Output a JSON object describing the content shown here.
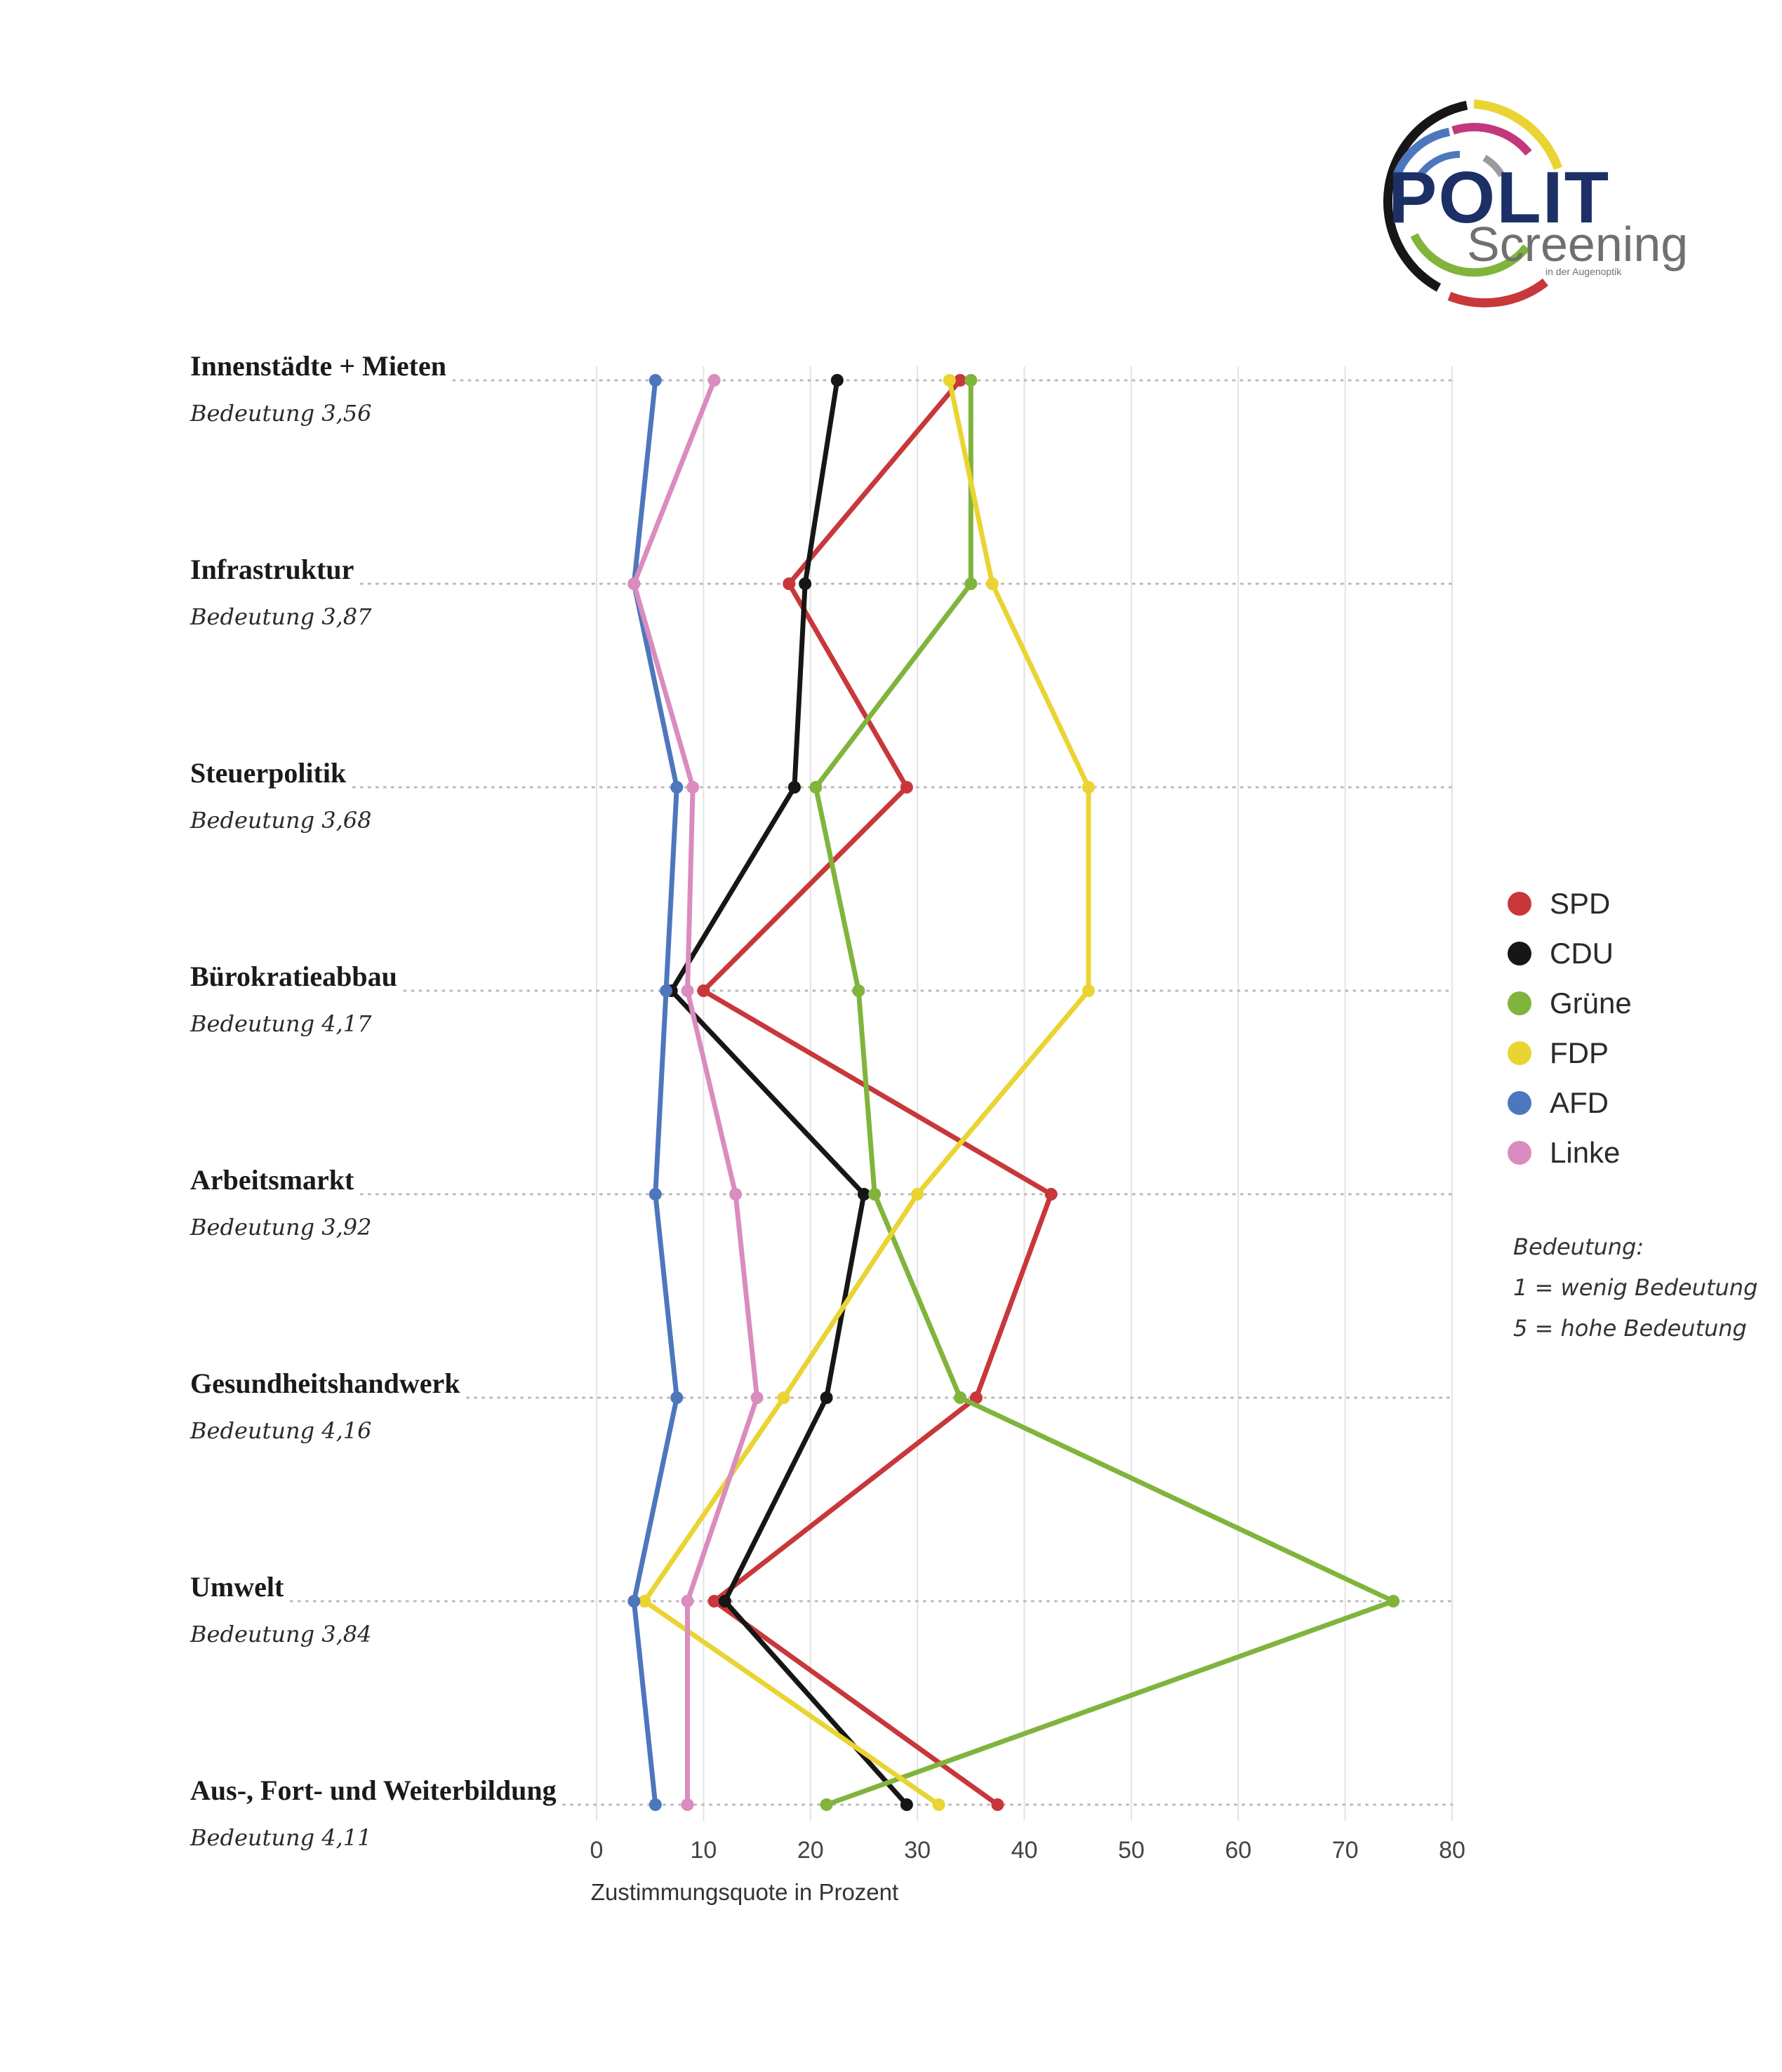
{
  "logo": {
    "title": "POLIT",
    "subtitle": "Screening",
    "tagline": "in der Augenoptik"
  },
  "chart_data": {
    "type": "line",
    "orientation": "horizontal",
    "xlabel": "Zustimmungsquote in Prozent",
    "xlim": [
      0,
      80
    ],
    "xticks": [
      0,
      10,
      20,
      30,
      40,
      50,
      60,
      70,
      80
    ],
    "categories": [
      {
        "label": "Innenstädte + Mieten",
        "importance": "Bedeutung 3,56"
      },
      {
        "label": "Infrastruktur",
        "importance": "Bedeutung 3,87"
      },
      {
        "label": "Steuerpolitik",
        "importance": "Bedeutung 3,68"
      },
      {
        "label": "Bürokratieabbau",
        "importance": "Bedeutung 4,17"
      },
      {
        "label": "Arbeitsmarkt",
        "importance": "Bedeutung 3,92"
      },
      {
        "label": "Gesundheitshandwerk",
        "importance": "Bedeutung 4,16"
      },
      {
        "label": "Umwelt",
        "importance": "Bedeutung 3,84"
      },
      {
        "label": "Aus-, Fort- und Weiterbildung",
        "importance": "Bedeutung 4,11"
      }
    ],
    "series": [
      {
        "name": "SPD",
        "color": "#c8373a",
        "values": [
          34,
          18,
          29,
          10,
          42.5,
          35.5,
          11,
          37.5
        ]
      },
      {
        "name": "CDU",
        "color": "#161616",
        "values": [
          22.5,
          19.5,
          18.5,
          7,
          25,
          21.5,
          12,
          29
        ]
      },
      {
        "name": "Grüne",
        "color": "#80b43c",
        "values": [
          35,
          35,
          20.5,
          24.5,
          26,
          34,
          74.5,
          21.5
        ]
      },
      {
        "name": "FDP",
        "color": "#ead433",
        "values": [
          33,
          37,
          46,
          46,
          30,
          17.5,
          4.5,
          32
        ]
      },
      {
        "name": "AFD",
        "color": "#4d77bd",
        "values": [
          5.5,
          3.5,
          7.5,
          6.5,
          5.5,
          7.5,
          3.5,
          5.5
        ]
      },
      {
        "name": "Linke",
        "color": "#da8cbe",
        "values": [
          11,
          3.5,
          9,
          8.5,
          13,
          15,
          8.5,
          8.5
        ]
      }
    ],
    "legend_position": "right",
    "note": [
      "Bedeutung:",
      "1 = wenig Bedeutung",
      "5 = hohe Bedeutung"
    ]
  }
}
